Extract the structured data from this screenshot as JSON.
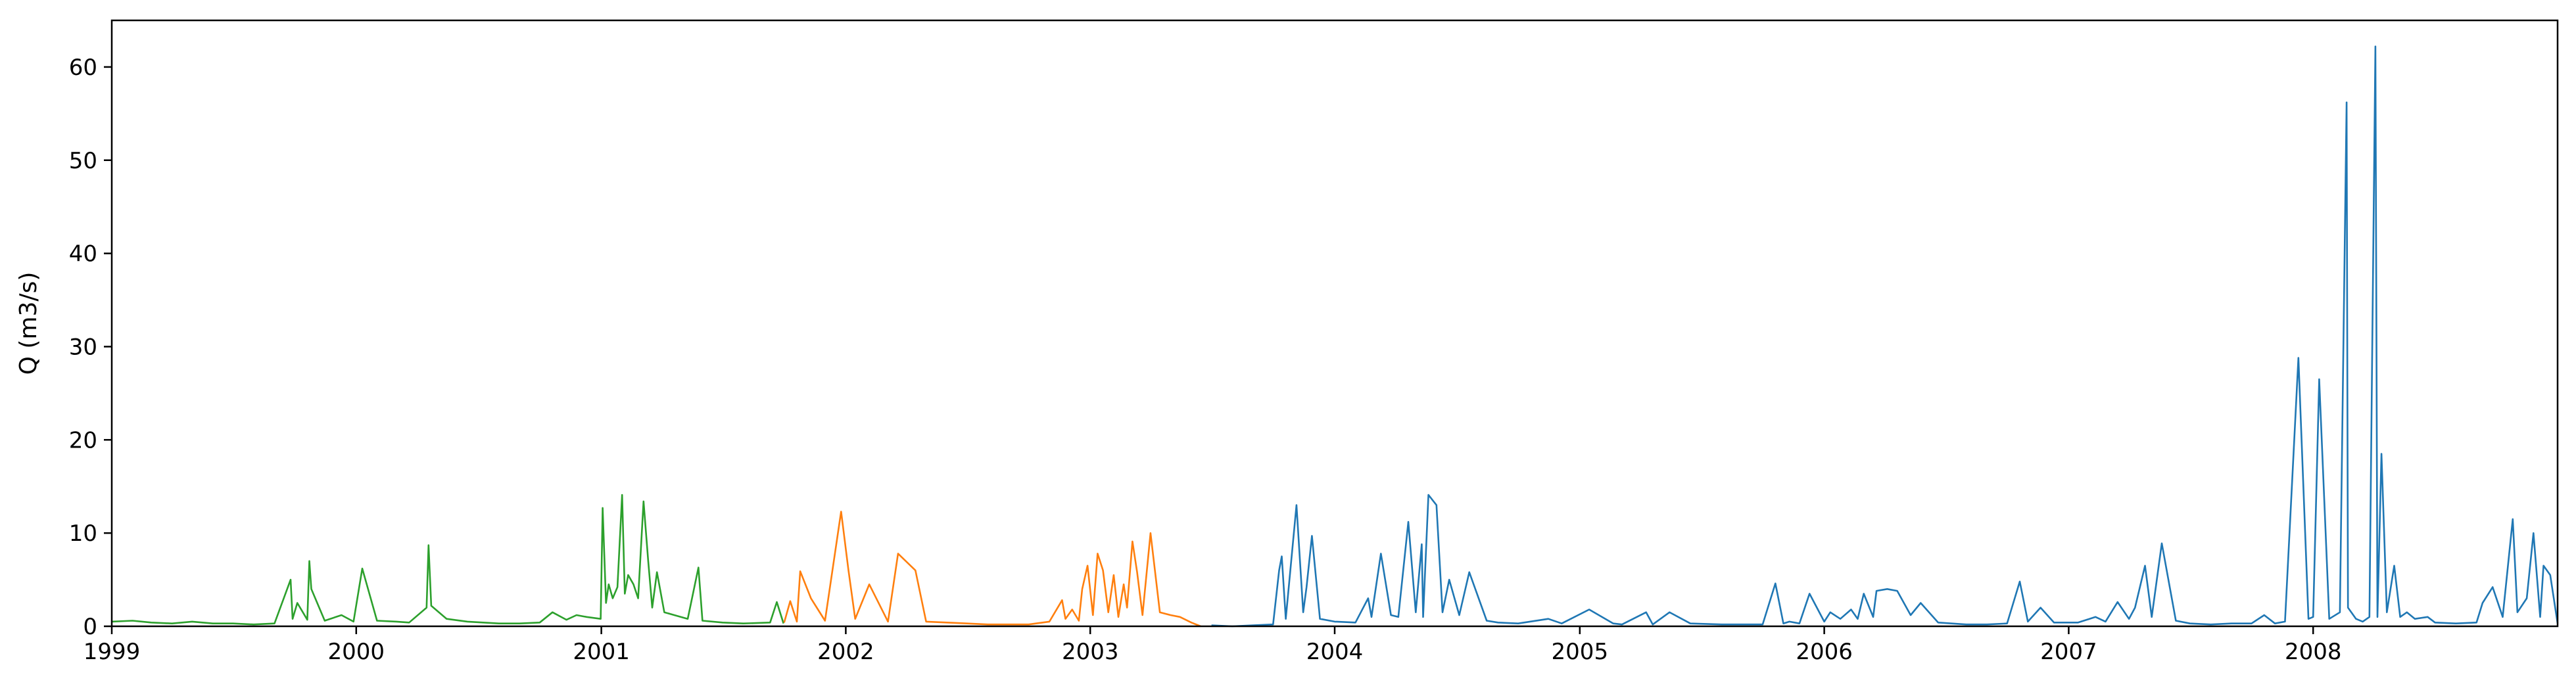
{
  "chart_data": {
    "type": "line",
    "title": "",
    "xlabel": "",
    "ylabel": "Q (m3/s)",
    "xlim": [
      "1999-01-01",
      "2008-12-31"
    ],
    "ylim": [
      0,
      65
    ],
    "x_ticks": [
      "1999",
      "2000",
      "2001",
      "2002",
      "2003",
      "2004",
      "2005",
      "2006",
      "2007",
      "2008"
    ],
    "y_ticks": [
      0,
      10,
      20,
      30,
      40,
      50,
      60
    ],
    "grid": false,
    "series": [
      {
        "color": "#2ca02c",
        "x": [
          "1999-01-01",
          "1999-02-01",
          "1999-03-01",
          "1999-04-01",
          "1999-05-01",
          "1999-06-01",
          "1999-07-01",
          "1999-08-01",
          "1999-09-01",
          "1999-09-25",
          "1999-09-28",
          "1999-10-05",
          "1999-10-20",
          "1999-10-23",
          "1999-10-26",
          "1999-11-15",
          "1999-12-10",
          "1999-12-28",
          "2000-01-10",
          "2000-02-01",
          "2000-03-01",
          "2000-03-20",
          "2000-04-15",
          "2000-04-18",
          "2000-04-22",
          "2000-05-15",
          "2000-06-15",
          "2000-08-01",
          "2000-09-01",
          "2000-10-01",
          "2000-10-20",
          "2000-11-10",
          "2000-11-25",
          "2000-12-10",
          "2000-12-31",
          "2001-01-03",
          "2001-01-08",
          "2001-01-12",
          "2001-01-18",
          "2001-01-25",
          "2001-02-01",
          "2001-02-05",
          "2001-02-10",
          "2001-02-18",
          "2001-02-25",
          "2001-03-05",
          "2001-03-12",
          "2001-03-18",
          "2001-03-25",
          "2001-04-05",
          "2001-04-20",
          "2001-05-10",
          "2001-05-26",
          "2001-06-01",
          "2001-07-01",
          "2001-08-01",
          "2001-09-10",
          "2001-09-20",
          "2001-09-30"
        ],
        "y": [
          0.5,
          0.6,
          0.4,
          0.3,
          0.5,
          0.3,
          0.3,
          0.2,
          0.3,
          5.0,
          0.8,
          2.5,
          0.7,
          7.0,
          4.0,
          0.6,
          1.2,
          0.5,
          6.2,
          0.6,
          0.5,
          0.4,
          2.0,
          8.7,
          2.2,
          0.8,
          0.5,
          0.3,
          0.3,
          0.4,
          1.5,
          0.7,
          1.2,
          1.0,
          0.8,
          12.7,
          2.5,
          4.5,
          3.0,
          4.2,
          14.1,
          3.5,
          5.5,
          4.5,
          3.0,
          13.4,
          7.0,
          2.0,
          5.8,
          1.5,
          1.2,
          0.8,
          6.3,
          0.6,
          0.4,
          0.3,
          0.4,
          2.6,
          0.3
        ]
      },
      {
        "color": "#ff7f0e",
        "x": [
          "2001-10-01",
          "2001-10-10",
          "2001-10-20",
          "2001-10-25",
          "2001-11-10",
          "2001-12-01",
          "2001-12-25",
          "2002-01-05",
          "2002-01-15",
          "2002-02-05",
          "2002-03-05",
          "2002-03-20",
          "2002-04-15",
          "2002-05-01",
          "2002-06-01",
          "2002-07-01",
          "2002-08-01",
          "2002-09-01",
          "2002-10-01",
          "2002-11-01",
          "2002-11-20",
          "2002-11-25",
          "2002-12-05",
          "2002-12-15",
          "2002-12-20",
          "2002-12-28",
          "2003-01-05",
          "2003-01-12",
          "2003-01-20",
          "2003-01-28",
          "2003-02-05",
          "2003-02-12",
          "2003-02-20",
          "2003-02-25",
          "2003-03-05",
          "2003-03-12",
          "2003-03-20",
          "2003-04-01",
          "2003-04-15",
          "2003-05-01",
          "2003-05-15",
          "2003-06-01",
          "2003-06-15"
        ],
        "y": [
          0.4,
          2.7,
          0.5,
          5.9,
          3.0,
          0.6,
          12.3,
          6.0,
          0.8,
          4.5,
          0.5,
          7.8,
          6.0,
          0.5,
          0.4,
          0.3,
          0.2,
          0.2,
          0.2,
          0.5,
          2.8,
          0.8,
          1.8,
          0.6,
          4.0,
          6.5,
          1.2,
          7.8,
          6.0,
          1.5,
          5.5,
          1.0,
          4.5,
          2.0,
          9.1,
          5.8,
          1.2,
          10.0,
          1.5,
          1.2,
          1.0,
          0.4,
          0.0
        ]
      },
      {
        "color": "#1f77b4",
        "x": [
          "2003-07-01",
          "2003-08-01",
          "2003-09-01",
          "2003-10-01",
          "2003-10-10",
          "2003-10-14",
          "2003-10-20",
          "2003-11-05",
          "2003-11-15",
          "2003-11-20",
          "2003-11-28",
          "2003-12-10",
          "2004-01-01",
          "2004-02-01",
          "2004-02-20",
          "2004-02-25",
          "2004-03-10",
          "2004-03-25",
          "2004-04-05",
          "2004-04-20",
          "2004-05-01",
          "2004-05-10",
          "2004-05-12",
          "2004-05-20",
          "2004-06-01",
          "2004-06-10",
          "2004-06-20",
          "2004-07-05",
          "2004-07-20",
          "2004-08-15",
          "2004-09-01",
          "2004-10-01",
          "2004-11-15",
          "2004-12-05",
          "2005-01-15",
          "2005-02-20",
          "2005-03-05",
          "2005-04-10",
          "2005-04-20",
          "2005-05-15",
          "2005-06-15",
          "2005-08-01",
          "2005-09-01",
          "2005-10-01",
          "2005-10-20",
          "2005-11-01",
          "2005-11-10",
          "2005-11-25",
          "2005-12-10",
          "2006-01-01",
          "2006-01-10",
          "2006-01-25",
          "2006-02-10",
          "2006-02-20",
          "2006-03-01",
          "2006-03-15",
          "2006-03-20",
          "2006-04-05",
          "2006-04-20",
          "2006-05-10",
          "2006-05-25",
          "2006-06-20",
          "2006-08-01",
          "2006-09-01",
          "2006-10-01",
          "2006-10-20",
          "2006-11-01",
          "2006-11-20",
          "2006-12-10",
          "2007-01-15",
          "2007-02-10",
          "2007-02-25",
          "2007-03-15",
          "2007-04-01",
          "2007-04-10",
          "2007-04-25",
          "2007-05-05",
          "2007-05-20",
          "2007-06-10",
          "2007-07-01",
          "2007-08-01",
          "2007-09-01",
          "2007-10-01",
          "2007-10-20",
          "2007-11-05",
          "2007-11-20",
          "2007-12-10",
          "2007-12-25",
          "2008-01-01",
          "2008-01-10",
          "2008-01-25",
          "2008-02-10",
          "2008-02-20",
          "2008-02-22",
          "2008-03-05",
          "2008-03-15",
          "2008-03-25",
          "2008-04-03",
          "2008-04-06",
          "2008-04-12",
          "2008-04-20",
          "2008-05-01",
          "2008-05-10",
          "2008-05-20",
          "2008-06-01",
          "2008-06-20",
          "2008-07-01",
          "2008-08-01",
          "2008-09-01",
          "2008-09-10",
          "2008-09-25",
          "2008-10-10",
          "2008-10-25",
          "2008-11-01",
          "2008-11-15",
          "2008-11-25",
          "2008-12-05",
          "2008-12-10",
          "2008-12-20",
          "2008-12-31"
        ],
        "y": [
          0.1,
          0.0,
          0.1,
          0.2,
          6.0,
          7.5,
          0.8,
          13.0,
          1.5,
          4.2,
          9.7,
          0.8,
          0.5,
          0.4,
          3.0,
          1.0,
          7.8,
          1.2,
          1.0,
          11.2,
          1.5,
          8.8,
          1.0,
          14.1,
          13.0,
          1.5,
          5.0,
          1.2,
          5.8,
          0.6,
          0.4,
          0.3,
          0.8,
          0.3,
          1.8,
          0.3,
          0.2,
          1.5,
          0.2,
          1.5,
          0.3,
          0.2,
          0.2,
          0.2,
          4.6,
          0.3,
          0.5,
          0.3,
          3.5,
          0.5,
          1.5,
          0.8,
          1.8,
          0.8,
          3.5,
          1.0,
          3.8,
          4.0,
          3.8,
          1.2,
          2.5,
          0.4,
          0.2,
          0.2,
          0.3,
          4.8,
          0.5,
          2.0,
          0.4,
          0.4,
          1.0,
          0.5,
          2.6,
          0.8,
          2.0,
          6.5,
          1.0,
          8.9,
          0.6,
          0.3,
          0.2,
          0.3,
          0.3,
          1.2,
          0.3,
          0.5,
          28.8,
          0.8,
          1.0,
          26.5,
          0.8,
          1.5,
          56.2,
          2.0,
          0.8,
          0.5,
          1.0,
          62.2,
          1.0,
          18.5,
          1.5,
          6.5,
          1.0,
          1.5,
          0.8,
          1.0,
          0.4,
          0.3,
          0.4,
          2.5,
          4.2,
          1.0,
          11.5,
          1.5,
          3.0,
          10.0,
          1.0,
          6.5,
          5.5,
          0.3
        ]
      }
    ]
  }
}
